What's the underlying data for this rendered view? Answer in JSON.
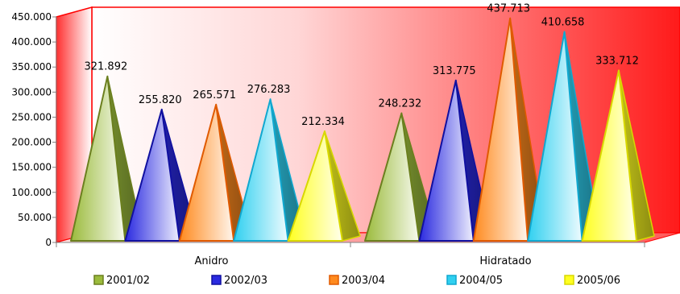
{
  "chart_data": {
    "type": "bar",
    "style": "3d-pyramid",
    "categories": [
      "Anidro",
      "Hidratado"
    ],
    "series": [
      {
        "name": "2001/02",
        "values": [
          321892,
          248232
        ],
        "labels": [
          "321.892",
          "248.232"
        ],
        "color": "#9BBB3C",
        "edge": "#6B7F1E"
      },
      {
        "name": "2002/03",
        "values": [
          255820,
          313775
        ],
        "labels": [
          "255.820",
          "313.775"
        ],
        "color": "#2A2AE0",
        "edge": "#1010A0"
      },
      {
        "name": "2003/04",
        "values": [
          265571,
          437713
        ],
        "labels": [
          "265.571",
          "437.713"
        ],
        "color": "#FF8A1E",
        "edge": "#E05A00"
      },
      {
        "name": "2004/05",
        "values": [
          276283,
          410658
        ],
        "labels": [
          "276.283",
          "410.658"
        ],
        "color": "#30D0F0",
        "edge": "#10A8D0"
      },
      {
        "name": "2005/06",
        "values": [
          212334,
          333712
        ],
        "labels": [
          "212.334",
          "333.712"
        ],
        "color": "#FFFF20",
        "edge": "#D8D800"
      }
    ],
    "yticks": [
      0,
      50000,
      100000,
      150000,
      200000,
      250000,
      300000,
      350000,
      400000,
      450000
    ],
    "ytick_labels": [
      "0",
      "50.000",
      "100.000",
      "150.000",
      "200.000",
      "250.000",
      "300.000",
      "350.000",
      "400.000",
      "450.000"
    ],
    "ylim": [
      0,
      450000
    ],
    "legend_position": "bottom",
    "wall_color": "#FF0000",
    "grid": false
  }
}
